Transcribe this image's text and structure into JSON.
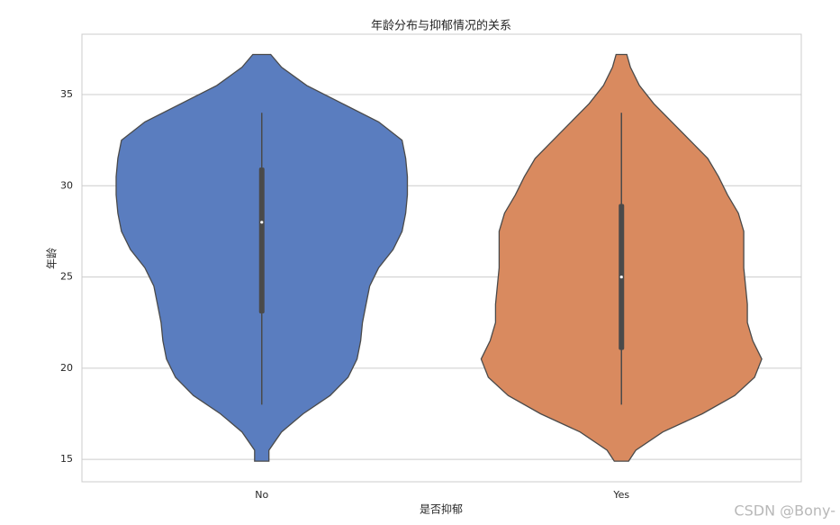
{
  "chart_data": {
    "type": "violin",
    "title": "年龄分布与抑郁情况的关系",
    "x_label": "是否抑郁",
    "y_label": "年龄",
    "watermark": "CSDN @Bony-",
    "categories": [
      "No",
      "Yes"
    ],
    "ylim": [
      13.77,
      38.31
    ],
    "yticks": [
      15,
      20,
      25,
      30,
      35
    ],
    "grid": true,
    "series": [
      {
        "color": "#5a7dbf",
        "min": 18,
        "q1": 23,
        "median": 28,
        "q3": 31,
        "max": 34,
        "kde": {
          "y": [
            14.9,
            15.5,
            16.5,
            17.5,
            18.5,
            19.5,
            20.5,
            21.5,
            22.5,
            23.5,
            24.5,
            25.5,
            26.5,
            27.5,
            28.5,
            29.5,
            30.5,
            31.5,
            32.5,
            33.5,
            34.5,
            35.5,
            36.5,
            37.2
          ],
          "width": [
            0.04,
            0.04,
            0.11,
            0.23,
            0.38,
            0.48,
            0.53,
            0.55,
            0.56,
            0.58,
            0.6,
            0.65,
            0.73,
            0.78,
            0.8,
            0.81,
            0.81,
            0.8,
            0.78,
            0.65,
            0.45,
            0.25,
            0.11,
            0.05
          ]
        }
      },
      {
        "color": "#d98a5f",
        "min": 18,
        "q1": 21,
        "median": 25,
        "q3": 29,
        "max": 34,
        "kde": {
          "y": [
            14.9,
            15.5,
            16.5,
            17.5,
            18.5,
            19.5,
            20.5,
            21.5,
            22.5,
            23.5,
            24.5,
            25.5,
            26.5,
            27.5,
            28.5,
            29.5,
            30.5,
            31.5,
            32.5,
            33.5,
            34.5,
            35.5,
            36.5,
            37.2
          ],
          "width": [
            0.04,
            0.08,
            0.23,
            0.45,
            0.63,
            0.74,
            0.78,
            0.73,
            0.7,
            0.7,
            0.69,
            0.68,
            0.68,
            0.68,
            0.65,
            0.59,
            0.54,
            0.48,
            0.38,
            0.28,
            0.18,
            0.1,
            0.05,
            0.03
          ]
        }
      }
    ]
  }
}
